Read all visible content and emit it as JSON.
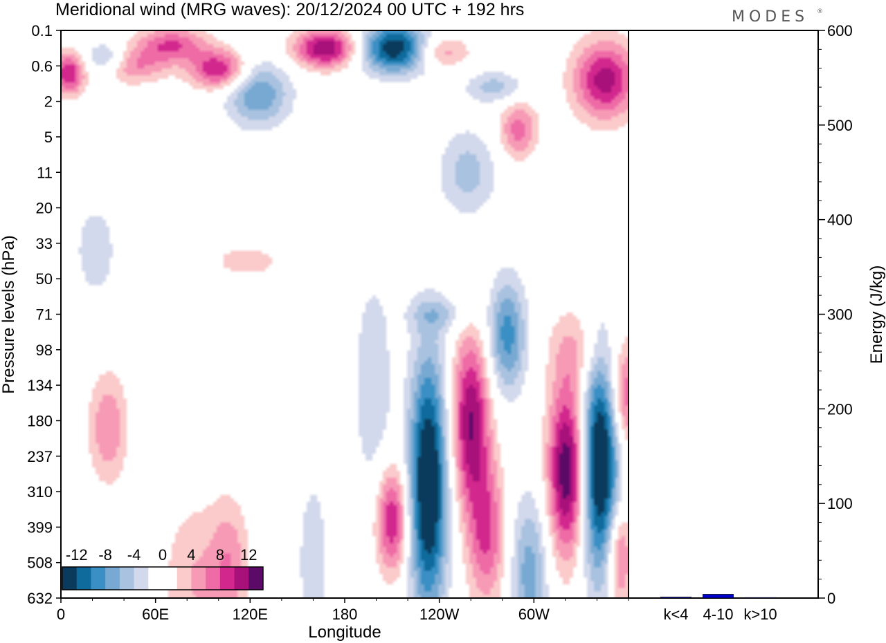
{
  "title": "Meridional wind (MRG waves):  20/12/2024  00 UTC  + 192 hrs",
  "logo": "MODES",
  "chart_data": [
    {
      "type": "heatmap",
      "variable": "Meridional wind (MRG waves)",
      "xlabel": "Longitude",
      "ylabel": "Pressure levels (hPa)",
      "xticks": [
        "0",
        "60E",
        "120E",
        "180",
        "120W",
        "60W"
      ],
      "xtick_deg": [
        0,
        60,
        120,
        180,
        240,
        300
      ],
      "xlim_deg": [
        0,
        360
      ],
      "yticks": [
        "0.1",
        "0.6",
        "2",
        "5",
        "11",
        "20",
        "33",
        "50",
        "71",
        "98",
        "134",
        "180",
        "237",
        "310",
        "399",
        "508",
        "632"
      ],
      "colorbar": {
        "labels": [
          "-12",
          "-8",
          "-4",
          "0",
          "4",
          "8",
          "12"
        ],
        "colors": [
          "#0b3b5c",
          "#0f6b9c",
          "#3a8fc4",
          "#78a9d2",
          "#a9c2e0",
          "#d3d9ec",
          "#ffffff",
          "#ffffff",
          "#fbcaca",
          "#f79ab6",
          "#ee6ba6",
          "#d2288e",
          "#a8107a",
          "#5c0a68"
        ]
      },
      "blobs": [
        {
          "lon": 22,
          "lev": 6.2,
          "rx": 12,
          "ry": 1.2,
          "v": -4
        },
        {
          "lon": 45,
          "lev": 1.0,
          "rx": 22,
          "ry": 0.5,
          "v": 6
        },
        {
          "lon": 5,
          "lev": 1.2,
          "rx": 10,
          "ry": 0.6,
          "v": 10
        },
        {
          "lon": 28,
          "lev": 0.8,
          "rx": 14,
          "ry": 0.45,
          "v": -6
        },
        {
          "lon": 70,
          "lev": 0.4,
          "rx": 22,
          "ry": 0.5,
          "v": 8
        },
        {
          "lon": 100,
          "lev": 1.1,
          "rx": 18,
          "ry": 0.55,
          "v": 10
        },
        {
          "lon": 125,
          "lev": 1.8,
          "rx": 20,
          "ry": 0.9,
          "v": -8
        },
        {
          "lon": 168,
          "lev": 0.5,
          "rx": 20,
          "ry": 0.55,
          "v": 12
        },
        {
          "lon": 212,
          "lev": 0.5,
          "rx": 22,
          "ry": 0.7,
          "v": -14
        },
        {
          "lon": 240,
          "lev": 0.6,
          "rx": 18,
          "ry": 0.45,
          "v": 6
        },
        {
          "lon": 275,
          "lev": 1.6,
          "rx": 18,
          "ry": 0.45,
          "v": -5
        },
        {
          "lon": 290,
          "lev": 2.8,
          "rx": 12,
          "ry": 0.8,
          "v": 7
        },
        {
          "lon": 345,
          "lev": 1.4,
          "rx": 20,
          "ry": 1.1,
          "v": 11
        },
        {
          "lon": 258,
          "lev": 4.0,
          "rx": 18,
          "ry": 1.2,
          "v": -5
        },
        {
          "lon": 118,
          "lev": 6.5,
          "rx": 25,
          "ry": 0.5,
          "v": 3
        },
        {
          "lon": 240,
          "lev": 8.0,
          "rx": 20,
          "ry": 0.5,
          "v": -4
        },
        {
          "lon": 328,
          "lev": 9.0,
          "rx": 18,
          "ry": 1.2,
          "v": 4
        },
        {
          "lon": 85,
          "lev": 15.5,
          "rx": 20,
          "ry": 2.2,
          "v": 4
        },
        {
          "lon": 107,
          "lev": 15.0,
          "rx": 12,
          "ry": 1.8,
          "v": 5
        },
        {
          "lon": 160,
          "lev": 15.0,
          "rx": 12,
          "ry": 3.0,
          "v": -3
        },
        {
          "lon": 30,
          "lev": 11.2,
          "rx": 12,
          "ry": 1.5,
          "v": 6
        },
        {
          "lon": 198,
          "lev": 10.0,
          "rx": 12,
          "ry": 3.0,
          "v": -4
        },
        {
          "lon": 210,
          "lev": 13.8,
          "rx": 10,
          "ry": 1.5,
          "v": 10
        },
        {
          "lon": 233,
          "lev": 12.8,
          "rx": 12,
          "ry": 3.6,
          "v": -16
        },
        {
          "lon": 260,
          "lev": 11.0,
          "rx": 12,
          "ry": 2.4,
          "v": 12
        },
        {
          "lon": 270,
          "lev": 14.2,
          "rx": 12,
          "ry": 2.0,
          "v": 8
        },
        {
          "lon": 283,
          "lev": 8.6,
          "rx": 12,
          "ry": 1.6,
          "v": -9
        },
        {
          "lon": 297,
          "lev": 15.3,
          "rx": 12,
          "ry": 2.2,
          "v": -7
        },
        {
          "lon": 321,
          "lev": 12.4,
          "rx": 12,
          "ry": 2.4,
          "v": 14
        },
        {
          "lon": 342,
          "lev": 12.2,
          "rx": 12,
          "ry": 3.2,
          "v": -16
        },
        {
          "lon": 358,
          "lev": 10.3,
          "rx": 10,
          "ry": 1.5,
          "v": 8
        },
        {
          "lon": 354,
          "lev": 14.8,
          "rx": 8,
          "ry": 1.5,
          "v": 8
        }
      ]
    },
    {
      "type": "bar",
      "categories": [
        "k<4",
        "4-10",
        "k>10"
      ],
      "values": [
        1,
        4,
        0.5
      ],
      "ylabel": "Energy (J/kg)",
      "yticks": [
        "0",
        "100",
        "200",
        "300",
        "400",
        "500",
        "600"
      ],
      "ylim": [
        0,
        600
      ],
      "bar_color": "#0000cc"
    }
  ]
}
